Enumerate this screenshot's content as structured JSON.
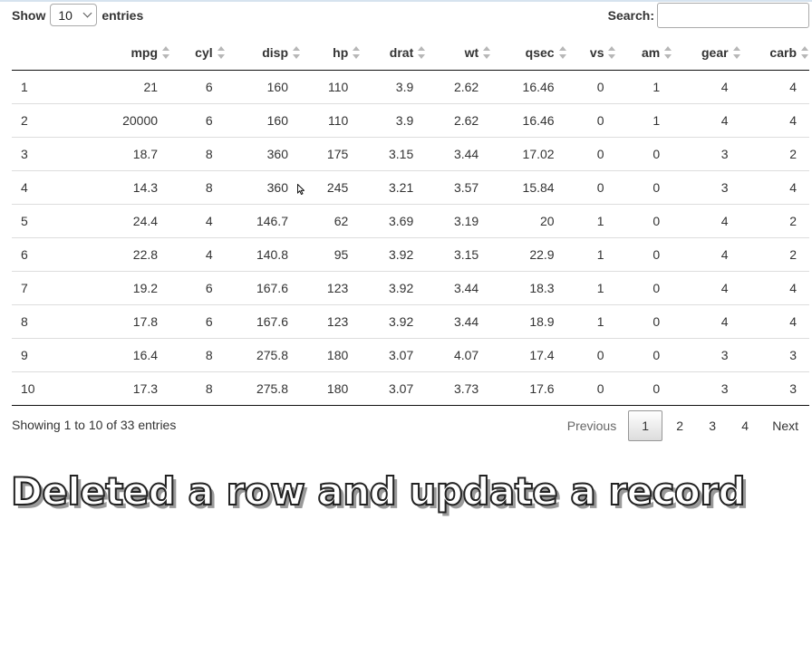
{
  "length_menu": {
    "prefix": "Show",
    "selected": "10",
    "suffix": "entries"
  },
  "search": {
    "label": "Search:",
    "value": ""
  },
  "table": {
    "columns": [
      "",
      "mpg",
      "cyl",
      "disp",
      "hp",
      "drat",
      "wt",
      "qsec",
      "vs",
      "am",
      "gear",
      "carb"
    ],
    "rows": [
      [
        "1",
        "21",
        "6",
        "160",
        "110",
        "3.9",
        "2.62",
        "16.46",
        "0",
        "1",
        "4",
        "4"
      ],
      [
        "2",
        "20000",
        "6",
        "160",
        "110",
        "3.9",
        "2.62",
        "16.46",
        "0",
        "1",
        "4",
        "4"
      ],
      [
        "3",
        "18.7",
        "8",
        "360",
        "175",
        "3.15",
        "3.44",
        "17.02",
        "0",
        "0",
        "3",
        "2"
      ],
      [
        "4",
        "14.3",
        "8",
        "360",
        "245",
        "3.21",
        "3.57",
        "15.84",
        "0",
        "0",
        "3",
        "4"
      ],
      [
        "5",
        "24.4",
        "4",
        "146.7",
        "62",
        "3.69",
        "3.19",
        "20",
        "1",
        "0",
        "4",
        "2"
      ],
      [
        "6",
        "22.8",
        "4",
        "140.8",
        "95",
        "3.92",
        "3.15",
        "22.9",
        "1",
        "0",
        "4",
        "2"
      ],
      [
        "7",
        "19.2",
        "6",
        "167.6",
        "123",
        "3.92",
        "3.44",
        "18.3",
        "1",
        "0",
        "4",
        "4"
      ],
      [
        "8",
        "17.8",
        "6",
        "167.6",
        "123",
        "3.92",
        "3.44",
        "18.9",
        "1",
        "0",
        "4",
        "4"
      ],
      [
        "9",
        "16.4",
        "8",
        "275.8",
        "180",
        "3.07",
        "4.07",
        "17.4",
        "0",
        "0",
        "3",
        "3"
      ],
      [
        "10",
        "17.3",
        "8",
        "275.8",
        "180",
        "3.07",
        "3.73",
        "17.6",
        "0",
        "0",
        "3",
        "3"
      ]
    ]
  },
  "info_text": "Showing 1 to 10 of 33 entries",
  "pagination": {
    "previous": "Previous",
    "pages": [
      "1",
      "2",
      "3",
      "4"
    ],
    "current": "1",
    "next": "Next"
  },
  "caption": "Deleted a row and update a record"
}
